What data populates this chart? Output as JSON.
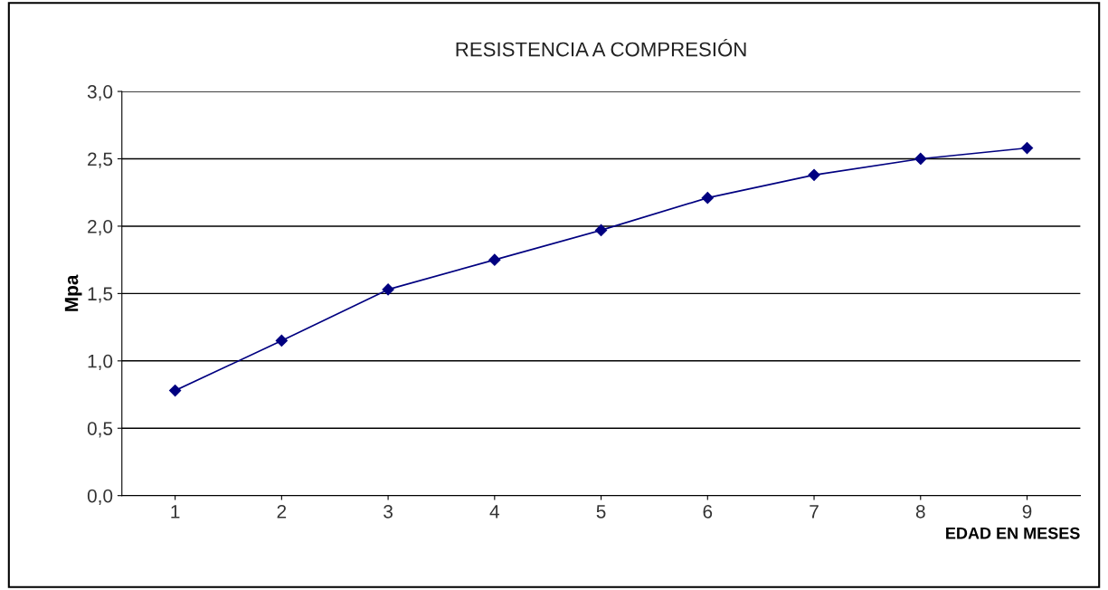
{
  "chart_data": {
    "type": "line",
    "title": "RESISTENCIA A COMPRESIÓN",
    "xlabel": "EDAD EN MESES",
    "ylabel": "Mpa",
    "categories": [
      "1",
      "2",
      "3",
      "4",
      "5",
      "6",
      "7",
      "8",
      "9"
    ],
    "series": [
      {
        "color": "#000080",
        "values": [
          0.78,
          1.15,
          1.53,
          1.75,
          1.97,
          2.21,
          2.38,
          2.5,
          2.58
        ]
      }
    ],
    "ylim": [
      0,
      3.0
    ],
    "yticks": [
      {
        "value": 0,
        "label": "0,0"
      },
      {
        "value": 0.5,
        "label": "0,5"
      },
      {
        "value": 1.0,
        "label": "1,0"
      },
      {
        "value": 1.5,
        "label": "1,5"
      },
      {
        "value": 2.0,
        "label": "2,0"
      },
      {
        "value": 2.5,
        "label": "2,5"
      },
      {
        "value": 3.0,
        "label": "3,0"
      }
    ],
    "grid": "y",
    "marker": "diamond",
    "line_style": "solid",
    "legend": false
  }
}
